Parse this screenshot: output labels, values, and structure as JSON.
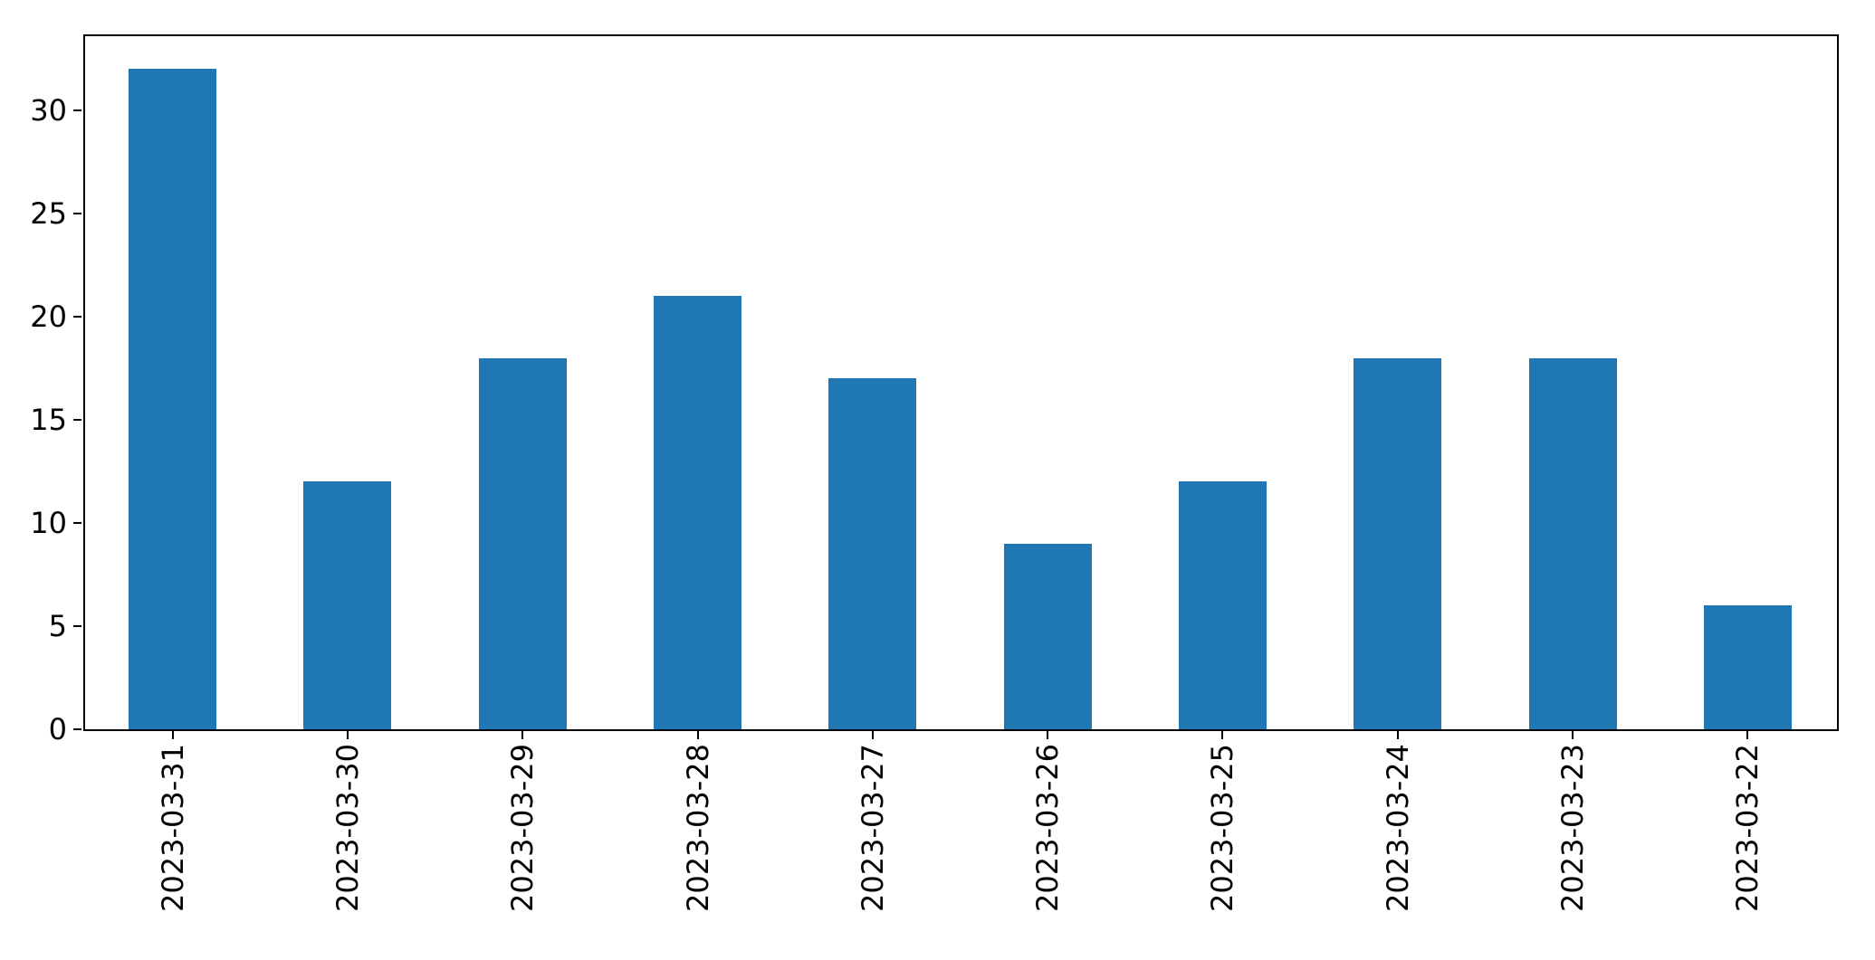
{
  "chart_data": {
    "type": "bar",
    "title": "",
    "xlabel": "",
    "ylabel": "",
    "categories": [
      "2023-03-31",
      "2023-03-30",
      "2023-03-29",
      "2023-03-28",
      "2023-03-27",
      "2023-03-26",
      "2023-03-25",
      "2023-03-24",
      "2023-03-23",
      "2023-03-22"
    ],
    "values": [
      32,
      12,
      18,
      21,
      17,
      9,
      12,
      18,
      18,
      6
    ],
    "yticks": [
      0,
      5,
      10,
      15,
      20,
      25,
      30
    ],
    "ylim": [
      0,
      33.6
    ],
    "xlim_units": [
      -0.5,
      9.5
    ],
    "bar_color": "#1f77b4",
    "bar_width_fraction": 0.5,
    "x_tick_label_rotation_deg": 90,
    "grid": false,
    "legend": false,
    "spine_color": "#000000",
    "tick_color": "#000000",
    "tick_label_color": "#000000",
    "background_color": "#ffffff"
  }
}
